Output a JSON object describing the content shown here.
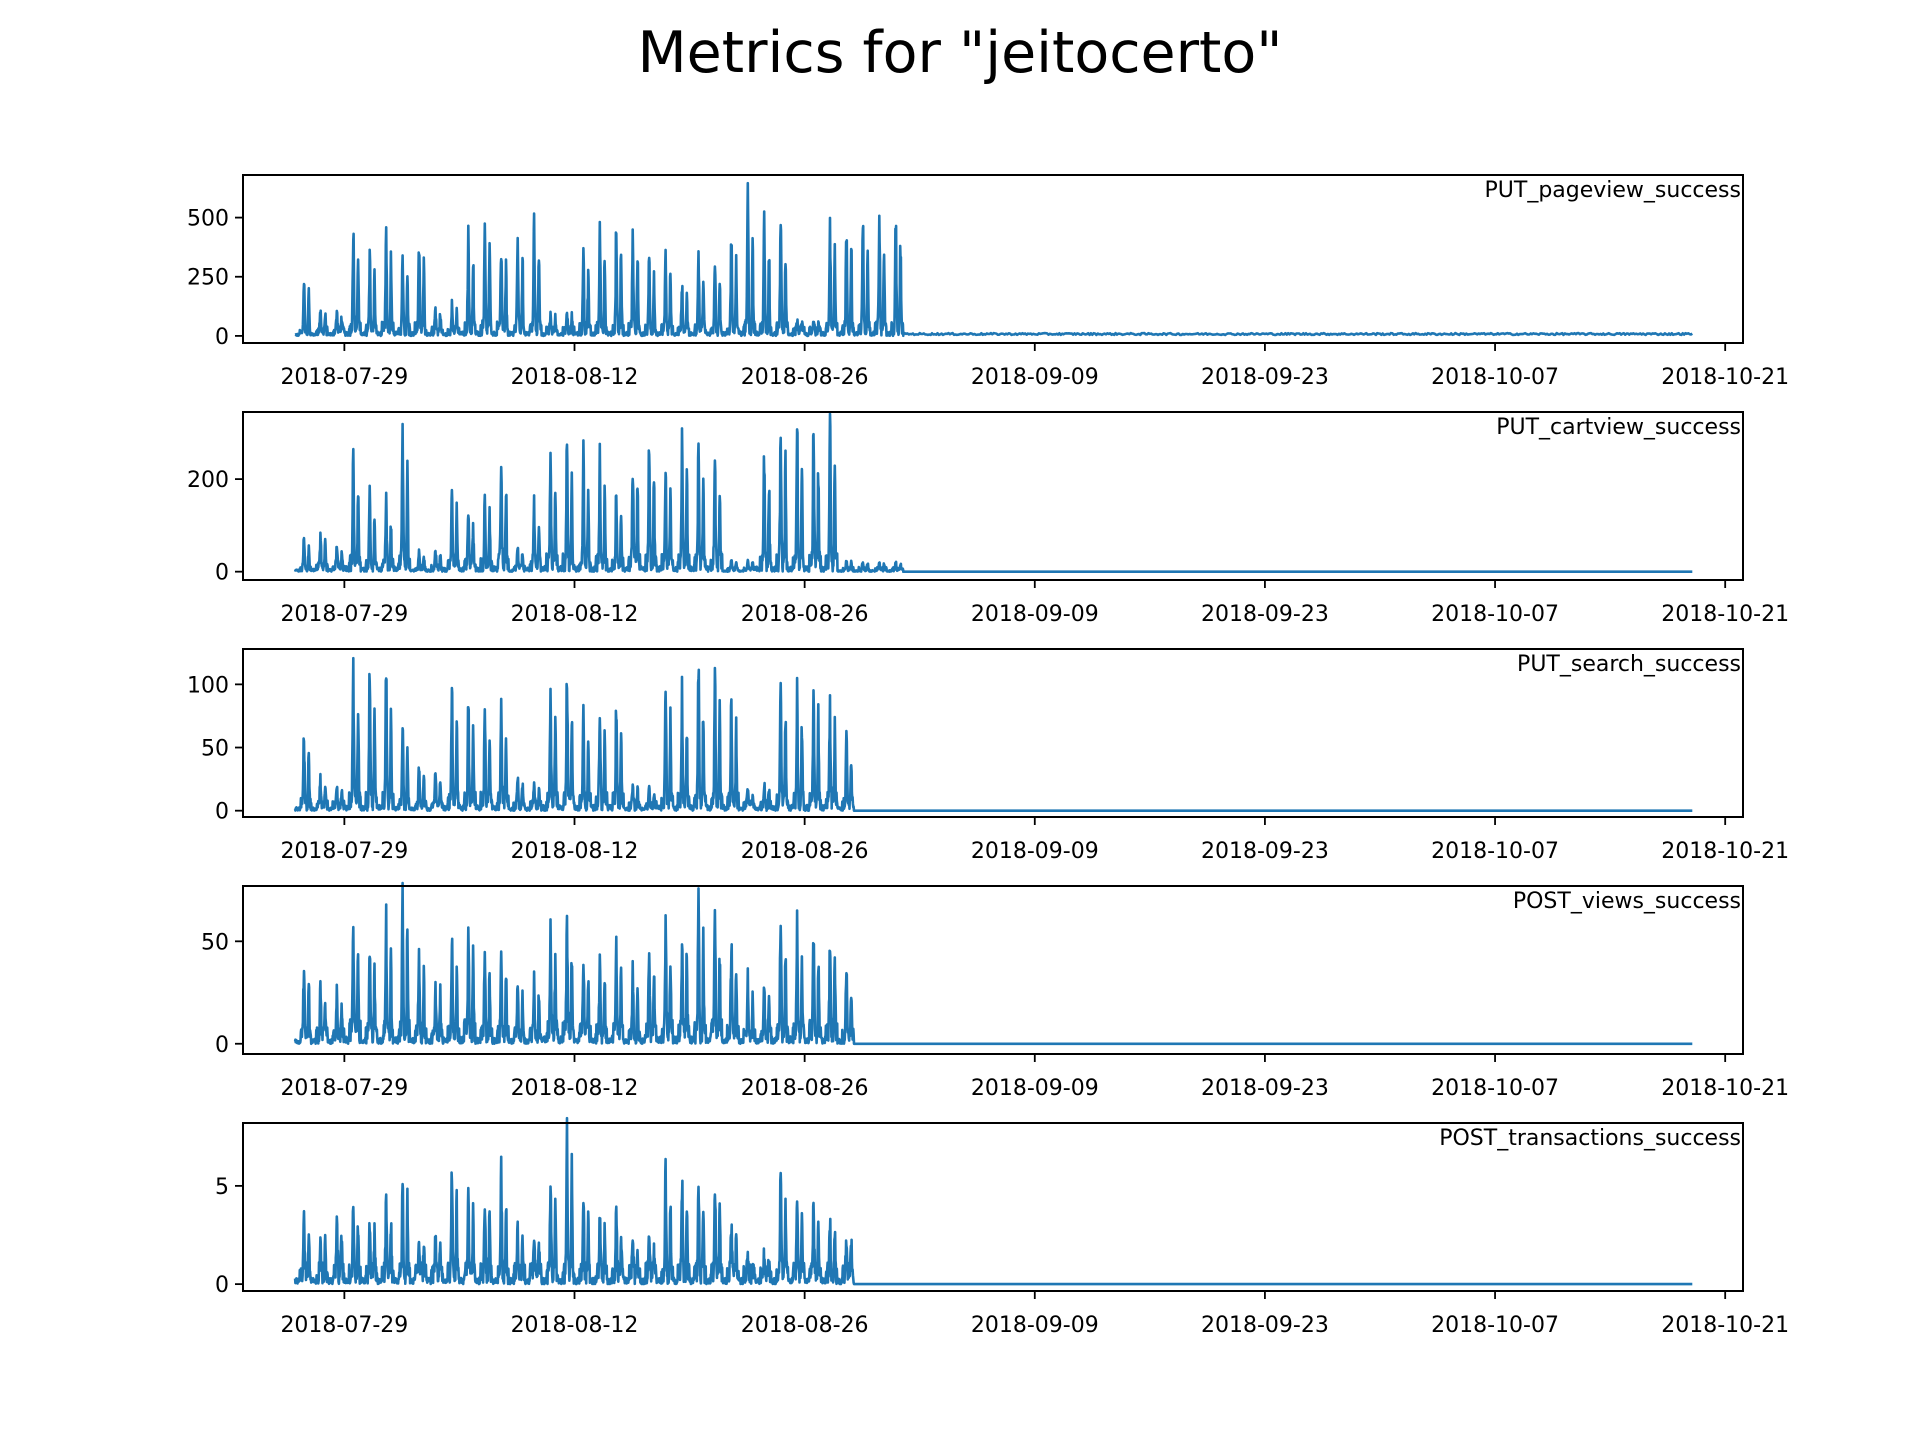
{
  "title": "Metrics for \"jeitocerto\"",
  "chart_data": {
    "type": "line",
    "line_color": "#1f77b4",
    "x_tick_labels": [
      "2018-07-29",
      "2018-08-12",
      "2018-08-26",
      "2018-09-09",
      "2018-09-23",
      "2018-10-07",
      "2018-10-21"
    ],
    "x_ticks": [
      "2018-07-29",
      "2018-08-12",
      "2018-08-26",
      "2018-09-09",
      "2018-09-23",
      "2018-10-07",
      "2018-10-21"
    ],
    "xlim": [
      "2018-07-22T20:00",
      "2018-10-22T02:00"
    ],
    "x_data_range": [
      "2018-07-26",
      "2018-10-19"
    ],
    "activity_end": "2018-09-01",
    "panels": [
      {
        "name": "PUT_pageview_success",
        "ylim": [
          -30,
          680
        ],
        "yticks": [
          0,
          250,
          500
        ],
        "ytick_labels": [
          "0",
          "250",
          "500"
        ],
        "daily_peaks": [
          270,
          100,
          95,
          485,
          350,
          440,
          360,
          470,
          120,
          130,
          450,
          530,
          400,
          460,
          530,
          80,
          90,
          370,
          490,
          470,
          480,
          350,
          370,
          240,
          340,
          340,
          460,
          650,
          520,
          530,
          60,
          60,
          490,
          540,
          560,
          580
        ],
        "daily_base": [
          30,
          40,
          40,
          60,
          50,
          60,
          60,
          60,
          40,
          40,
          60,
          70,
          60,
          60,
          60,
          40,
          40,
          60,
          60,
          60,
          60,
          50,
          50,
          40,
          50,
          50,
          60,
          70,
          60,
          60,
          40,
          40,
          60,
          60,
          60,
          60
        ],
        "tail_level": 8
      },
      {
        "name": "PUT_cartview_success",
        "ylim": [
          -18,
          345
        ],
        "yticks": [
          0,
          200
        ],
        "ytick_labels": [
          "0",
          "200"
        ],
        "daily_peaks": [
          75,
          80,
          50,
          255,
          165,
          155,
          325,
          45,
          45,
          180,
          130,
          160,
          260,
          50,
          155,
          250,
          285,
          270,
          240,
          180,
          250,
          290,
          250,
          295,
          275,
          240,
          25,
          20,
          265,
          335,
          320,
          330,
          330,
          20,
          20,
          15
        ],
        "daily_base": [
          15,
          20,
          20,
          40,
          30,
          30,
          40,
          15,
          15,
          30,
          30,
          30,
          40,
          15,
          30,
          40,
          40,
          40,
          40,
          30,
          40,
          40,
          40,
          40,
          40,
          40,
          10,
          10,
          40,
          40,
          40,
          40,
          40,
          10,
          10,
          10
        ],
        "tail_level": 0
      },
      {
        "name": "PUT_search_success",
        "ylim": [
          -5,
          128
        ],
        "yticks": [
          0,
          50,
          100
        ],
        "ytick_labels": [
          "0",
          "50",
          "100"
        ],
        "daily_peaks": [
          65,
          25,
          18,
          125,
          115,
          118,
          75,
          40,
          30,
          105,
          95,
          90,
          85,
          25,
          20,
          95,
          115,
          80,
          85,
          80,
          20,
          15,
          100,
          95,
          125,
          120,
          90,
          15,
          20,
          100,
          95,
          100,
          85,
          60,
          0,
          0
        ],
        "daily_base": [
          10,
          8,
          8,
          15,
          15,
          15,
          10,
          8,
          8,
          15,
          15,
          15,
          15,
          8,
          8,
          15,
          15,
          15,
          15,
          15,
          8,
          8,
          15,
          15,
          15,
          15,
          15,
          8,
          8,
          15,
          15,
          15,
          15,
          10,
          0,
          0
        ],
        "tail_level": 0
      },
      {
        "name": "POST_views_success",
        "ylim": [
          -5,
          77
        ],
        "yticks": [
          0,
          50
        ],
        "ytick_labels": [
          "0",
          "50"
        ],
        "daily_peaks": [
          42,
          25,
          25,
          58,
          50,
          58,
          75,
          45,
          30,
          50,
          55,
          45,
          45,
          35,
          30,
          55,
          60,
          45,
          45,
          47,
          35,
          45,
          55,
          55,
          75,
          62,
          50,
          30,
          28,
          65,
          55,
          55,
          55,
          36,
          0,
          0
        ],
        "daily_base": [
          8,
          8,
          8,
          12,
          10,
          12,
          12,
          10,
          8,
          10,
          12,
          10,
          10,
          8,
          8,
          12,
          12,
          10,
          10,
          10,
          8,
          10,
          12,
          12,
          12,
          12,
          10,
          8,
          8,
          12,
          12,
          12,
          12,
          8,
          0,
          0
        ],
        "tail_level": 0
      },
      {
        "name": "POST_transactions_success",
        "ylim": [
          -0.35,
          8.2
        ],
        "yticks": [
          0,
          5
        ],
        "ytick_labels": [
          "0",
          "5"
        ],
        "daily_peaks": [
          3.3,
          2.2,
          3.3,
          4.5,
          3.3,
          4.5,
          5.6,
          2.2,
          2.2,
          5.6,
          4.5,
          4.5,
          5.6,
          2.2,
          2.2,
          5.6,
          7.8,
          4.5,
          3.3,
          3.3,
          2.2,
          2.2,
          5.6,
          5.6,
          5.6,
          5.6,
          3.3,
          1.1,
          1.1,
          5.6,
          4.5,
          4.5,
          3.3,
          2.2,
          0,
          0
        ],
        "daily_base": [
          1.1,
          1.1,
          1.1,
          1.1,
          1.1,
          1.1,
          1.1,
          1.1,
          1.1,
          1.1,
          1.1,
          1.1,
          1.1,
          1.1,
          1.1,
          1.1,
          1.1,
          1.1,
          1.1,
          1.1,
          1.1,
          1.1,
          1.1,
          1.1,
          1.1,
          1.1,
          1.1,
          1.1,
          1.1,
          1.1,
          1.1,
          1.1,
          1.1,
          1.1,
          0,
          0
        ],
        "tail_level": 0
      }
    ]
  }
}
